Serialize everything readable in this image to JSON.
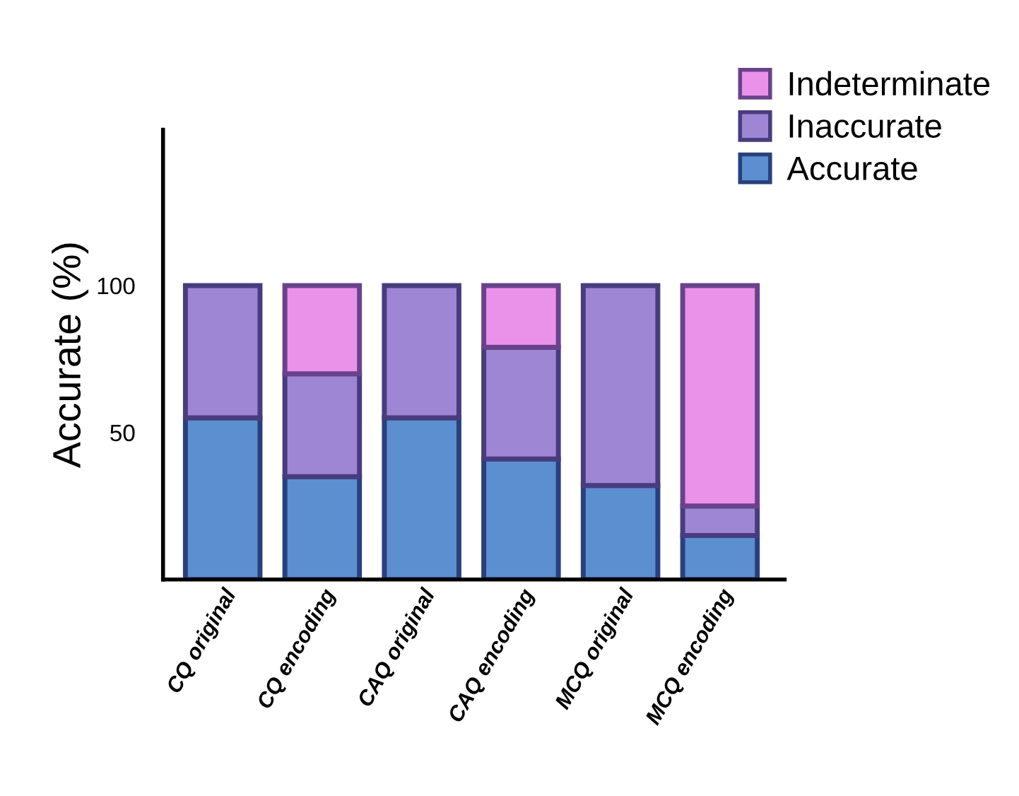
{
  "chart_data": {
    "type": "bar",
    "stacked": true,
    "ylabel": "Accurate (%)",
    "categories": [
      "CQ original",
      "CQ encoding",
      "CAQ original",
      "CAQ encoding",
      "MCQ original",
      "MCQ encoding"
    ],
    "series": [
      {
        "name": "Accurate",
        "color": "#5b8fd0",
        "values": [
          55,
          35,
          55,
          41,
          32,
          15
        ]
      },
      {
        "name": "Inaccurate",
        "color": "#9f86d4",
        "values": [
          45,
          35,
          45,
          38,
          68,
          10
        ]
      },
      {
        "name": "Indeterminate",
        "color": "#ea92ea",
        "values": [
          null,
          30,
          null,
          21,
          null,
          75
        ]
      }
    ],
    "ylim": [
      0,
      153
    ],
    "yticks": [
      50,
      100
    ],
    "grid": false,
    "legend": "top right"
  }
}
